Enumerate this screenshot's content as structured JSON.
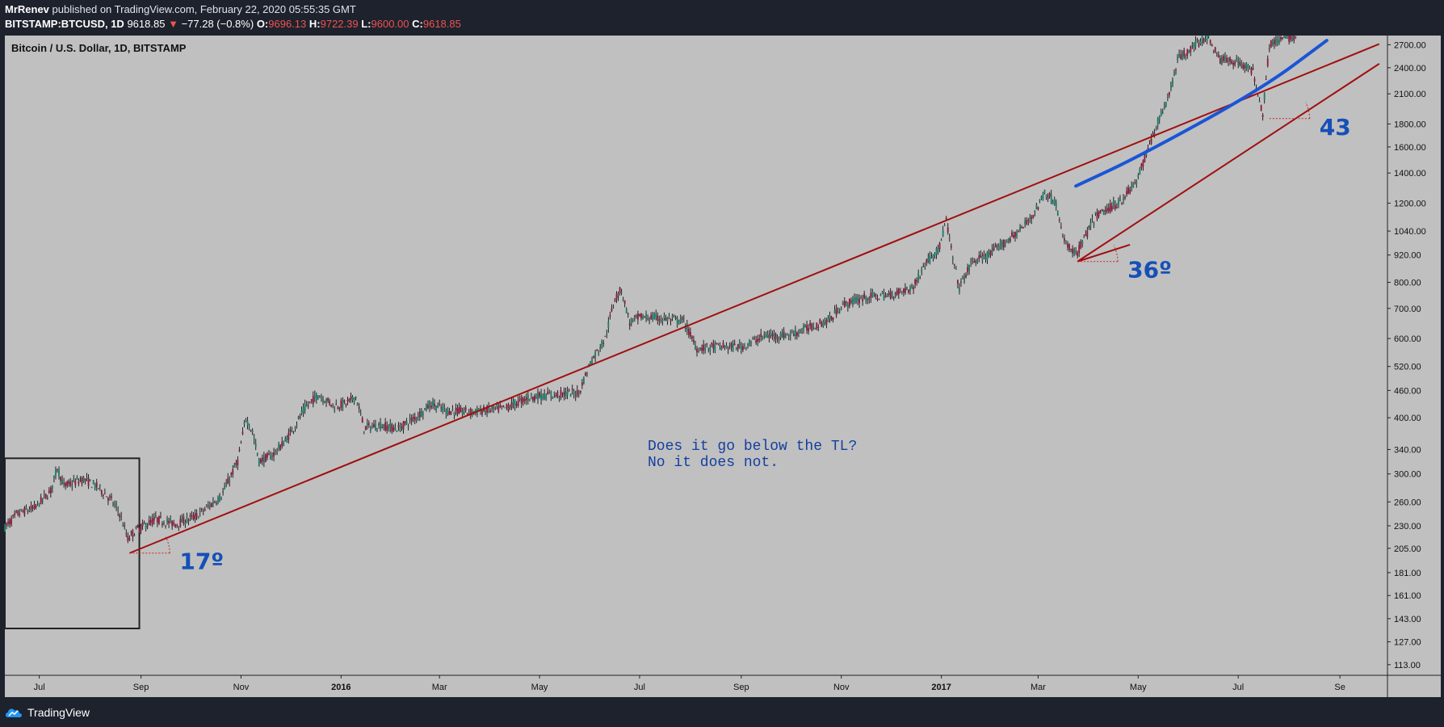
{
  "header": {
    "author": "MrRenev",
    "published_text": "published on TradingView.com, February 22, 2020 05:55:35 GMT",
    "symbol": "BITSTAMP:BTCUSD, 1D",
    "last": "9618.85",
    "change": "−77.28 (−0.8%)",
    "open_label": "O:",
    "open": "9696.13",
    "high_label": "H:",
    "high": "9722.39",
    "low_label": "L:",
    "low": "9600.00",
    "close_label": "C:",
    "close": "9618.85"
  },
  "footer": {
    "brand": "TradingView"
  },
  "chart_data": {
    "type": "candlestick",
    "title": "Bitcoin / U.S. Dollar, 1D, BITSTAMP",
    "y_scale": "log",
    "ylim": [
      107,
      2830
    ],
    "y_ticks": [
      113,
      127,
      143,
      161,
      181,
      205,
      230,
      260,
      300,
      340,
      400,
      460,
      520,
      600,
      700,
      800,
      920,
      1040,
      1200,
      1400,
      1600,
      1800,
      2100,
      2400,
      2700
    ],
    "y_tick_labels": [
      "113.00",
      "127.00",
      "143.00",
      "161.00",
      "181.00",
      "205.00",
      "230.00",
      "260.00",
      "300.00",
      "340.00",
      "400.00",
      "460.00",
      "520.00",
      "600.00",
      "700.00",
      "800.00",
      "920.00",
      "1040.00",
      "1200.00",
      "1400.00",
      "1600.00",
      "1800.00",
      "2100.00",
      "2400.00",
      "2700.00"
    ],
    "x_range": [
      "2015-06-10",
      "2017-09-30"
    ],
    "x_ticks": [
      {
        "date": "2015-07-01",
        "label": "Jul",
        "bold": false
      },
      {
        "date": "2015-09-01",
        "label": "Sep",
        "bold": false
      },
      {
        "date": "2015-11-01",
        "label": "Nov",
        "bold": false
      },
      {
        "date": "2016-01-01",
        "label": "2016",
        "bold": true
      },
      {
        "date": "2016-03-01",
        "label": "Mar",
        "bold": false
      },
      {
        "date": "2016-05-01",
        "label": "May",
        "bold": false
      },
      {
        "date": "2016-07-01",
        "label": "Jul",
        "bold": false
      },
      {
        "date": "2016-09-01",
        "label": "Sep",
        "bold": false
      },
      {
        "date": "2016-11-01",
        "label": "Nov",
        "bold": false
      },
      {
        "date": "2017-01-01",
        "label": "2017",
        "bold": true
      },
      {
        "date": "2017-03-01",
        "label": "Mar",
        "bold": false
      },
      {
        "date": "2017-05-01",
        "label": "May",
        "bold": false
      },
      {
        "date": "2017-07-01",
        "label": "Jul",
        "bold": false
      },
      {
        "date": "2017-09-01",
        "label": "Se",
        "bold": false
      }
    ],
    "price_path": [
      [
        "2015-06-10",
        228
      ],
      [
        "2015-06-18",
        245
      ],
      [
        "2015-06-28",
        252
      ],
      [
        "2015-07-08",
        275
      ],
      [
        "2015-07-12",
        310
      ],
      [
        "2015-07-16",
        282
      ],
      [
        "2015-07-28",
        292
      ],
      [
        "2015-08-06",
        280
      ],
      [
        "2015-08-14",
        262
      ],
      [
        "2015-08-19",
        245
      ],
      [
        "2015-08-24",
        215
      ],
      [
        "2015-08-29",
        225
      ],
      [
        "2015-09-10",
        238
      ],
      [
        "2015-09-22",
        232
      ],
      [
        "2015-10-05",
        242
      ],
      [
        "2015-10-20",
        268
      ],
      [
        "2015-10-30",
        320
      ],
      [
        "2015-11-04",
        400
      ],
      [
        "2015-11-08",
        372
      ],
      [
        "2015-11-12",
        320
      ],
      [
        "2015-11-20",
        330
      ],
      [
        "2015-11-28",
        355
      ],
      [
        "2015-12-05",
        390
      ],
      [
        "2015-12-10",
        420
      ],
      [
        "2015-12-18",
        450
      ],
      [
        "2015-12-28",
        425
      ],
      [
        "2016-01-04",
        430
      ],
      [
        "2016-01-10",
        445
      ],
      [
        "2016-01-15",
        380
      ],
      [
        "2016-01-25",
        385
      ],
      [
        "2016-02-05",
        378
      ],
      [
        "2016-02-15",
        400
      ],
      [
        "2016-02-25",
        430
      ],
      [
        "2016-03-05",
        415
      ],
      [
        "2016-03-20",
        412
      ],
      [
        "2016-04-10",
        420
      ],
      [
        "2016-04-25",
        445
      ],
      [
        "2016-05-10",
        450
      ],
      [
        "2016-05-25",
        455
      ],
      [
        "2016-06-01",
        530
      ],
      [
        "2016-06-10",
        600
      ],
      [
        "2016-06-16",
        740
      ],
      [
        "2016-06-20",
        770
      ],
      [
        "2016-06-25",
        650
      ],
      [
        "2016-07-01",
        670
      ],
      [
        "2016-07-15",
        665
      ],
      [
        "2016-07-28",
        655
      ],
      [
        "2016-08-02",
        600
      ],
      [
        "2016-08-05",
        570
      ],
      [
        "2016-08-15",
        575
      ],
      [
        "2016-09-01",
        575
      ],
      [
        "2016-09-15",
        608
      ],
      [
        "2016-10-01",
        612
      ],
      [
        "2016-10-15",
        640
      ],
      [
        "2016-10-25",
        660
      ],
      [
        "2016-11-01",
        710
      ],
      [
        "2016-11-15",
        740
      ],
      [
        "2016-12-01",
        750
      ],
      [
        "2016-12-15",
        780
      ],
      [
        "2016-12-22",
        880
      ],
      [
        "2016-12-31",
        960
      ],
      [
        "2017-01-04",
        1100
      ],
      [
        "2017-01-08",
        900
      ],
      [
        "2017-01-12",
        780
      ],
      [
        "2017-01-20",
        890
      ],
      [
        "2017-01-30",
        920
      ],
      [
        "2017-02-10",
        990
      ],
      [
        "2017-02-20",
        1060
      ],
      [
        "2017-03-01",
        1180
      ],
      [
        "2017-03-05",
        1270
      ],
      [
        "2017-03-12",
        1200
      ],
      [
        "2017-03-16",
        1000
      ],
      [
        "2017-03-24",
        920
      ],
      [
        "2017-04-05",
        1120
      ],
      [
        "2017-04-20",
        1210
      ],
      [
        "2017-04-30",
        1340
      ],
      [
        "2017-05-10",
        1700
      ],
      [
        "2017-05-20",
        2100
      ],
      [
        "2017-05-25",
        2500
      ],
      [
        "2017-06-05",
        2700
      ],
      [
        "2017-06-12",
        2820
      ],
      [
        "2017-06-20",
        2500
      ],
      [
        "2017-07-01",
        2480
      ],
      [
        "2017-07-10",
        2350
      ],
      [
        "2017-07-16",
        1900
      ],
      [
        "2017-07-20",
        2700
      ],
      [
        "2017-07-28",
        2780
      ],
      [
        "2017-08-05",
        2820
      ]
    ],
    "trendlines": [
      {
        "from": [
          "2015-08-25",
          200
        ],
        "to": [
          "2017-09-25",
          2710
        ],
        "color": "#a10f0f"
      },
      {
        "from": [
          "2017-03-25",
          890
        ],
        "to": [
          "2017-04-26",
          970
        ],
        "color": "#a10f0f"
      },
      {
        "from": [
          "2017-03-25",
          890
        ],
        "to": [
          "2017-09-25",
          2450
        ],
        "color": "#a10f0f"
      }
    ],
    "curve": {
      "points": [
        [
          "2017-03-24",
          1310
        ],
        [
          "2017-05-01",
          1520
        ],
        [
          "2017-07-15",
          2150
        ],
        [
          "2017-08-24",
          2760
        ]
      ],
      "color": "#1a55d6"
    },
    "angles": [
      {
        "at": [
          "2015-08-25",
          200
        ],
        "label": "17º"
      },
      {
        "at": [
          "2017-03-25",
          890
        ],
        "label": "36º"
      },
      {
        "at": [
          "2017-07-20",
          1850
        ],
        "label": "43"
      }
    ],
    "annotation": [
      "Does it go below the TL?",
      "No it does not."
    ],
    "box": {
      "from": [
        "2015-06-10",
        325
      ],
      "to": [
        "2015-08-31",
        136
      ]
    }
  }
}
